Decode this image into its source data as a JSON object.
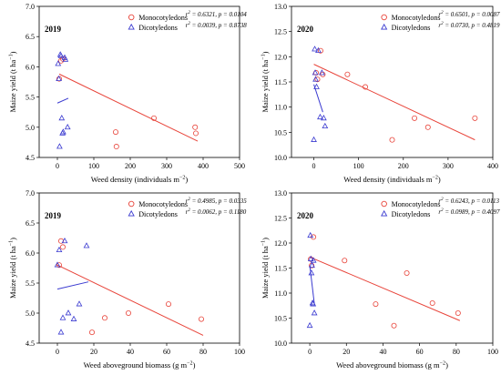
{
  "chart_data": [
    {
      "type": "scatter",
      "year": "2019",
      "xlabel": "Weed density (individuals m⁻²)",
      "ylabel": "Maize yield (t ha⁻¹)",
      "xlim": [
        -50,
        500
      ],
      "ylim": [
        4.5,
        7.0
      ],
      "xticks": [
        0,
        100,
        200,
        300,
        400,
        500
      ],
      "yticks": [
        4.5,
        5.0,
        5.5,
        6.0,
        6.5,
        7.0
      ],
      "xtick_labels": [
        "0",
        "100",
        "200",
        "300",
        "400",
        "500"
      ],
      "ytick_labels": [
        "4.5",
        "5.0",
        "5.5",
        "6.0",
        "6.5",
        "7.0"
      ],
      "legend_position": "top-right",
      "series": [
        {
          "name": "Monocotyledons",
          "marker": "circle",
          "color": "#e8443a",
          "stat_text": "r² = 0.6321, p = 0.0104",
          "x": [
            5,
            10,
            15,
            160,
            162,
            265,
            378,
            380
          ],
          "y": [
            5.8,
            6.1,
            6.13,
            4.92,
            4.68,
            5.15,
            5.0,
            4.9
          ],
          "fit": [
            [
              5,
              5.88
            ],
            [
              385,
              4.77
            ]
          ]
        },
        {
          "name": "Dicotyledons",
          "marker": "triangle",
          "color": "#3a3ad0",
          "stat_text": "r² = 0.0039, p = 0.8738",
          "x": [
            2,
            4,
            6,
            8,
            10,
            12,
            14,
            16,
            20,
            22,
            28
          ],
          "y": [
            6.05,
            5.8,
            4.68,
            6.2,
            6.18,
            5.15,
            4.9,
            4.92,
            6.15,
            6.12,
            5.0
          ],
          "fit": [
            [
              0,
              5.4
            ],
            [
              30,
              5.48
            ]
          ]
        }
      ]
    },
    {
      "type": "scatter",
      "year": "2020",
      "xlabel": "Weed density (individuals m⁻²)",
      "ylabel": "Maize yield (t ha⁻¹)",
      "xlim": [
        -50,
        400
      ],
      "ylim": [
        10.0,
        13.0
      ],
      "xticks": [
        0,
        100,
        200,
        300,
        400
      ],
      "yticks": [
        10.0,
        10.5,
        11.0,
        11.5,
        12.0,
        12.5,
        13.0
      ],
      "xtick_labels": [
        "0",
        "100",
        "200",
        "300",
        "400"
      ],
      "ytick_labels": [
        "10.0",
        "10.5",
        "11.0",
        "11.5",
        "12.0",
        "12.5",
        "13.0"
      ],
      "legend_position": "top-right",
      "series": [
        {
          "name": "Monocotyledons",
          "marker": "circle",
          "color": "#e8443a",
          "stat_text": "r² = 0.6501, p = 0.0087",
          "x": [
            5,
            8,
            15,
            20,
            75,
            115,
            175,
            225,
            255,
            360
          ],
          "y": [
            11.68,
            11.55,
            12.12,
            11.65,
            11.65,
            11.4,
            10.35,
            10.78,
            10.6,
            10.78
          ],
          "fit": [
            [
              0,
              11.85
            ],
            [
              360,
              10.35
            ]
          ]
        },
        {
          "name": "Dicotyledons",
          "marker": "triangle",
          "color": "#3a3ad0",
          "stat_text": "r² = 0.0730, p = 0.4819",
          "x": [
            0,
            2,
            3,
            4,
            6,
            10,
            14,
            18,
            22,
            25
          ],
          "y": [
            10.35,
            12.15,
            11.68,
            11.55,
            11.4,
            12.12,
            10.8,
            11.68,
            10.78,
            10.62
          ],
          "fit": [
            [
              0,
              11.45
            ],
            [
              20,
              10.9
            ]
          ]
        }
      ]
    },
    {
      "type": "scatter",
      "year": "2019",
      "xlabel": "Weed aboveground biomass (g m⁻²)",
      "ylabel": "Maize yield (t ha⁻¹)",
      "xlim": [
        -10,
        100
      ],
      "ylim": [
        4.5,
        7.0
      ],
      "xticks": [
        0,
        20,
        40,
        60,
        80,
        100
      ],
      "yticks": [
        4.5,
        5.0,
        5.5,
        6.0,
        6.5,
        7.0
      ],
      "xtick_labels": [
        "0",
        "20",
        "40",
        "60",
        "80",
        "100"
      ],
      "ytick_labels": [
        "4.5",
        "5.0",
        "5.5",
        "6.0",
        "6.5",
        "7.0"
      ],
      "legend_position": "top-right",
      "series": [
        {
          "name": "Monocotyledons",
          "marker": "circle",
          "color": "#e8443a",
          "stat_text": "r² = 0.4985, p = 0.0335",
          "x": [
            1,
            2,
            3,
            19,
            26,
            39,
            61,
            79
          ],
          "y": [
            5.8,
            6.2,
            6.1,
            4.68,
            4.92,
            5.0,
            5.15,
            4.9
          ],
          "fit": [
            [
              0,
              5.8
            ],
            [
              80,
              4.63
            ]
          ]
        },
        {
          "name": "Dicotyledons",
          "marker": "triangle",
          "color": "#3a3ad0",
          "stat_text": "r² = 0.0062, p = 0.1180",
          "x": [
            0,
            1,
            2,
            3,
            4,
            6,
            9,
            12,
            16
          ],
          "y": [
            5.8,
            6.05,
            4.68,
            4.92,
            6.2,
            5.0,
            4.9,
            5.15,
            6.12
          ],
          "fit": [
            [
              0,
              5.4
            ],
            [
              17,
              5.52
            ]
          ]
        }
      ]
    },
    {
      "type": "scatter",
      "year": "2020",
      "xlabel": "Weed aboveground biomass (g m⁻²)",
      "ylabel": "Maize yield (t ha⁻¹)",
      "xlim": [
        -10,
        100
      ],
      "ylim": [
        10.0,
        13.0
      ],
      "xticks": [
        0,
        20,
        40,
        60,
        80,
        100
      ],
      "yticks": [
        10.0,
        10.5,
        11.0,
        11.5,
        12.0,
        12.5,
        13.0
      ],
      "xtick_labels": [
        "0",
        "20",
        "40",
        "60",
        "80",
        "100"
      ],
      "ytick_labels": [
        "10.0",
        "10.5",
        "11.0",
        "11.5",
        "12.0",
        "12.5",
        "13.0"
      ],
      "legend_position": "top-right",
      "series": [
        {
          "name": "Monocotyledons",
          "marker": "circle",
          "color": "#e8443a",
          "stat_text": "r² = 0.6243, p = 0.0113",
          "x": [
            0.5,
            1,
            2,
            19,
            36,
            46,
            53,
            67,
            81
          ],
          "y": [
            11.68,
            11.55,
            12.12,
            11.65,
            10.78,
            10.35,
            11.4,
            10.8,
            10.6
          ],
          "fit": [
            [
              0,
              11.72
            ],
            [
              82,
              10.45
            ]
          ]
        },
        {
          "name": "Dicotyledons",
          "marker": "triangle",
          "color": "#3a3ad0",
          "stat_text": "r² = 0.0989, p = 0.4097",
          "x": [
            0,
            0.3,
            0.6,
            0.9,
            1.2,
            1.5,
            1.8,
            2.0,
            2.5
          ],
          "y": [
            10.35,
            12.15,
            11.68,
            11.4,
            11.55,
            10.8,
            10.78,
            11.65,
            10.6
          ],
          "fit": [
            [
              0,
              11.55
            ],
            [
              2.5,
              10.78
            ]
          ]
        }
      ]
    }
  ]
}
